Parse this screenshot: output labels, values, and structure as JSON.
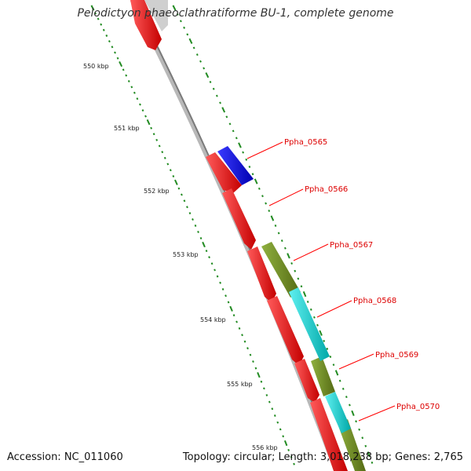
{
  "title": "Pelodictyon phaeoclathratiforme BU-1, complete genome",
  "footer": {
    "accession": "Accession: NC_011060",
    "summary": "Topology: circular; Length: 3,018,238 bp; Genes: 2,765"
  },
  "scale_labels": [
    "550 kbp",
    "551 kbp",
    "552 kbp",
    "553 kbp",
    "554 kbp",
    "555 kbp",
    "556 kbp"
  ],
  "gene_labels": [
    "Ppha_0565",
    "Ppha_0566",
    "Ppha_0567",
    "Ppha_0568",
    "Ppha_0569",
    "Ppha_0570"
  ],
  "colors": {
    "backbone": "#8a8a8a",
    "forward_cds": "#ff0000",
    "reverse_cds": "#0000ff",
    "olive_feature": "#6b8e23",
    "cyan_feature": "#00cccc",
    "tick": "#228b22",
    "label": "#dd0000"
  }
}
